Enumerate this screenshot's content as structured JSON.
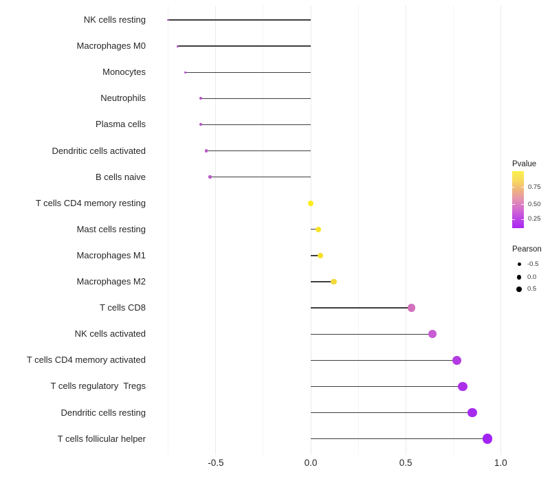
{
  "chart_data": {
    "type": "scatter",
    "variant": "lollipop",
    "orientation": "horizontal",
    "title": "",
    "xlabel": "",
    "ylabel": "",
    "xlim": [
      -0.834,
      1.014
    ],
    "grid": "vertical major and minor, light gray, no axis lines",
    "x_ticks": [
      {
        "value": -0.5,
        "label": "-0.5"
      },
      {
        "value": 0.0,
        "label": "0.0"
      },
      {
        "value": 0.5,
        "label": "0.5"
      },
      {
        "value": 1.0,
        "label": "1.0"
      }
    ],
    "x_minor_gridlines": [
      -0.75,
      -0.25,
      0.25,
      0.75
    ],
    "stem_color": "#3d3d3d",
    "points": [
      {
        "label": "NK cells resting",
        "pearson": -0.75,
        "dot_color": "#ad46c0"
      },
      {
        "label": "Macrophages M0",
        "pearson": -0.7,
        "dot_color": "#af49c3"
      },
      {
        "label": "Monocytes",
        "pearson": -0.66,
        "dot_color": "#b04cc3"
      },
      {
        "label": "Neutrophils",
        "pearson": -0.58,
        "dot_color": "#b553c6"
      },
      {
        "label": "Plasma cells",
        "pearson": -0.58,
        "dot_color": "#b553c6"
      },
      {
        "label": "Dendritic cells activated",
        "pearson": -0.55,
        "dot_color": "#b757c8"
      },
      {
        "label": "B cells naive",
        "pearson": -0.53,
        "dot_color": "#ba5ac9"
      },
      {
        "label": "T cells CD4 memory resting",
        "pearson": 0.0,
        "dot_color": "#f8ed1c"
      },
      {
        "label": "Mast cells resting",
        "pearson": 0.04,
        "dot_color": "#f6e526"
      },
      {
        "label": "Macrophages M1",
        "pearson": 0.05,
        "dot_color": "#f5e128"
      },
      {
        "label": "Macrophages M2",
        "pearson": 0.12,
        "dot_color": "#f2d93b"
      },
      {
        "label": "T cells CD8",
        "pearson": 0.53,
        "dot_color": "#d170bd"
      },
      {
        "label": "NK cells activated",
        "pearson": 0.64,
        "dot_color": "#c75cd3"
      },
      {
        "label": "T cells CD4 memory activated",
        "pearson": 0.77,
        "dot_color": "#b33be2"
      },
      {
        "label": "T cells regulatory  Tregs",
        "pearson": 0.8,
        "dot_color": "#ac30e9"
      },
      {
        "label": "Dendritic cells resting",
        "pearson": 0.85,
        "dot_color": "#a62bef"
      },
      {
        "label": "T cells follicular helper",
        "pearson": 0.93,
        "dot_color": "#a124f4"
      }
    ],
    "legend_pvalue": {
      "title": "Pvalue",
      "tick_labels": [
        "0.75",
        "0.50",
        "0.25"
      ],
      "gradient_stops": [
        "#fcf14c",
        "#f8d95e",
        "#efb37e",
        "#e492b2",
        "#d36cd0",
        "#bc45e5",
        "#a928f2"
      ]
    },
    "legend_pearson": {
      "title": "Pearson",
      "items": [
        {
          "label": "-0.5"
        },
        {
          "label": "0.0"
        },
        {
          "label": "0.5"
        }
      ],
      "dot_color": "#000000"
    }
  }
}
